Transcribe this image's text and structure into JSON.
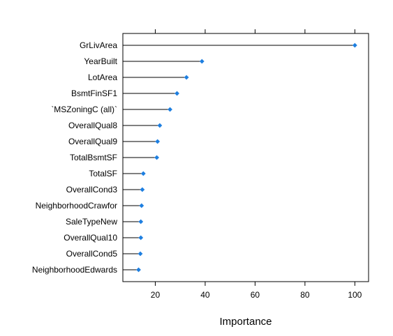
{
  "chart_data": {
    "type": "dotplot",
    "title": "",
    "xlabel": "Importance",
    "ylabel": "",
    "xlim": [
      7,
      105.5
    ],
    "xticks": [
      20,
      40,
      60,
      80,
      100
    ],
    "xtick_labels": [
      "20",
      "40",
      "60",
      "80",
      "100"
    ],
    "grid": false,
    "legend": "none",
    "point_color": "#1E7FE0",
    "line_color": "#000000",
    "categories": [
      "GrLivArea",
      "YearBuilt",
      "LotArea",
      "BsmtFinSF1",
      "`MSZoningC (all)`",
      "OverallQual8",
      "OverallQual9",
      "TotalBsmtSF",
      "TotalSF",
      "OverallCond3",
      "NeighborhoodCrawfor",
      "SaleTypeNew",
      "OverallQual10",
      "OverallCond5",
      "NeighborhoodEdwards"
    ],
    "values": [
      100,
      38.7,
      32.5,
      28.7,
      25.9,
      21.8,
      20.9,
      20.6,
      15.2,
      14.8,
      14.5,
      14.2,
      14.2,
      14.0,
      13.3
    ]
  }
}
